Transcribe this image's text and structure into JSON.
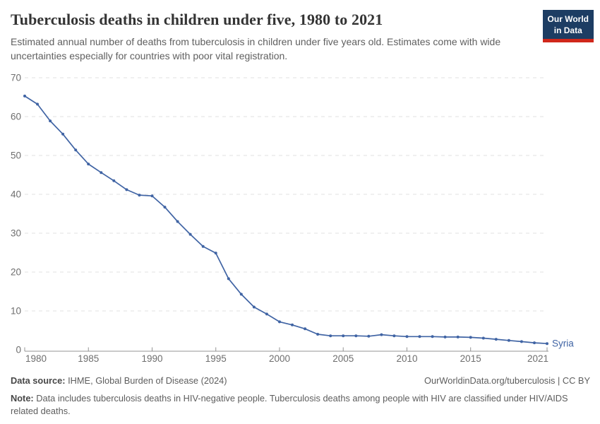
{
  "header": {
    "title": "Tuberculosis deaths in children under five, 1980 to 2021",
    "subtitle": "Estimated annual number of deaths from tuberculosis in children under five years old. Estimates come with wide uncertainties especially for countries with poor vital registration.",
    "logo_line1": "Our World",
    "logo_line2": "in Data"
  },
  "chart_data": {
    "type": "line",
    "title": "Tuberculosis deaths in children under five, 1980 to 2021",
    "xlabel": "",
    "ylabel": "",
    "xlim": [
      1980,
      2021
    ],
    "ylim": [
      0,
      70
    ],
    "x_ticks": [
      1980,
      1985,
      1990,
      1995,
      2000,
      2005,
      2010,
      2015,
      2021
    ],
    "y_ticks": [
      0,
      10,
      20,
      30,
      40,
      50,
      60,
      70
    ],
    "grid": "horizontal-dashed",
    "legend": "entity-label-at-line-end",
    "series": [
      {
        "name": "Syria",
        "color": "#4064a4",
        "x": [
          1980,
          1981,
          1982,
          1983,
          1984,
          1985,
          1986,
          1987,
          1988,
          1989,
          1990,
          1991,
          1992,
          1993,
          1994,
          1995,
          1996,
          1997,
          1998,
          1999,
          2000,
          2001,
          2002,
          2003,
          2004,
          2005,
          2006,
          2007,
          2008,
          2009,
          2010,
          2011,
          2012,
          2013,
          2014,
          2015,
          2016,
          2017,
          2018,
          2019,
          2020,
          2021
        ],
        "values": [
          65.3,
          63.2,
          58.9,
          55.5,
          51.4,
          47.8,
          45.6,
          43.5,
          41.2,
          39.8,
          39.6,
          36.7,
          33.0,
          29.7,
          26.6,
          24.9,
          18.3,
          14.3,
          11.0,
          9.2,
          7.2,
          6.4,
          5.4,
          4.0,
          3.6,
          3.6,
          3.6,
          3.5,
          3.9,
          3.6,
          3.4,
          3.4,
          3.4,
          3.3,
          3.3,
          3.2,
          3.0,
          2.7,
          2.4,
          2.1,
          1.8,
          1.6
        ]
      }
    ]
  },
  "footer": {
    "datasource_label": "Data source:",
    "datasource_text": " IHME, Global Burden of Disease (2024)",
    "link_text": "OurWorldinData.org/tuberculosis | CC BY",
    "note_label": "Note:",
    "note_text": " Data includes tuberculosis deaths in HIV-negative people. Tuberculosis deaths among people with HIV are classified under HIV/AIDS related deaths."
  },
  "colors": {
    "line": "#4064a4",
    "grid": "#e2e2e2",
    "axis": "#949494",
    "tick_label": "#6e6e6e",
    "title": "#343434",
    "subtitle": "#5f5f5f",
    "footer_text": "#5d5d5d",
    "logo_background": "#1d3d63",
    "logo_stripe": "#d0271b"
  }
}
